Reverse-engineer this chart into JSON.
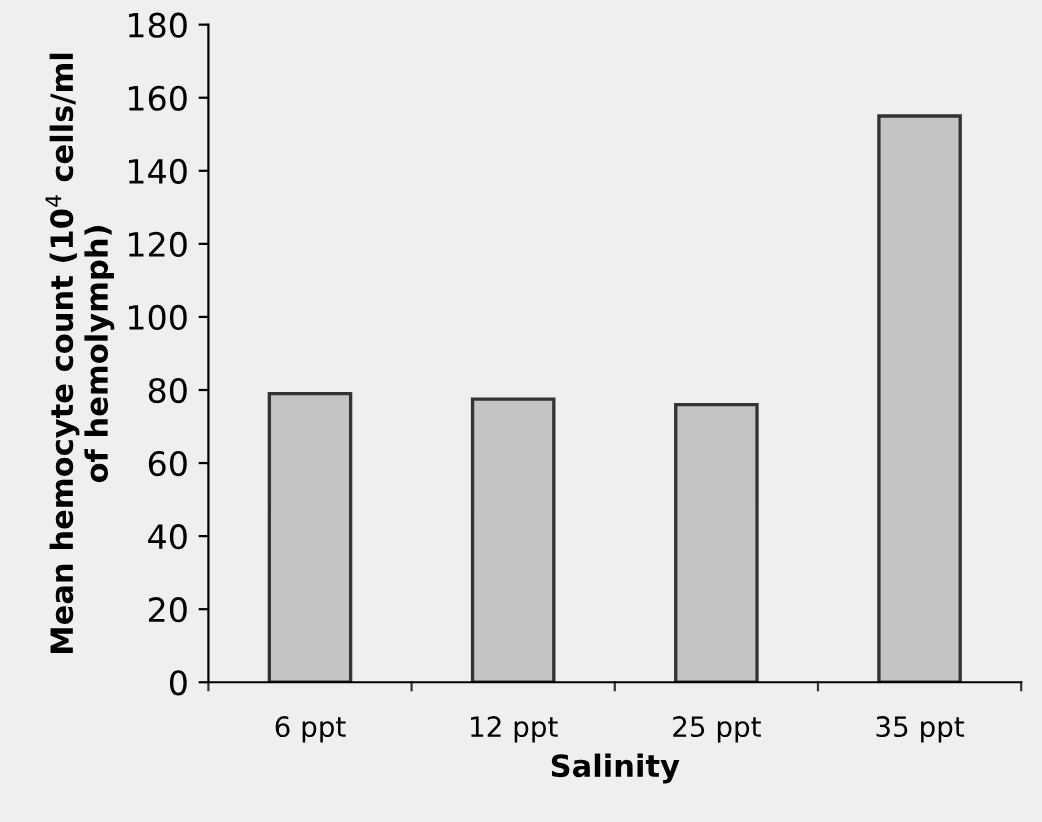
{
  "chart_data": {
    "type": "bar",
    "xlabel": "Salinity",
    "ylabel": "Mean hemocyte count (10$^{4}$ cells/ml\nof hemolymph)",
    "categories": [
      "6 ppt",
      "12 ppt",
      "25 ppt",
      "35 ppt"
    ],
    "values": [
      79,
      77.5,
      76,
      155
    ],
    "color": "#c4c4c4",
    "ylim": [
      0,
      180
    ],
    "yticks": [
      0,
      20,
      40,
      60,
      80,
      100,
      120,
      140,
      160,
      180
    ],
    "grid": false
  }
}
